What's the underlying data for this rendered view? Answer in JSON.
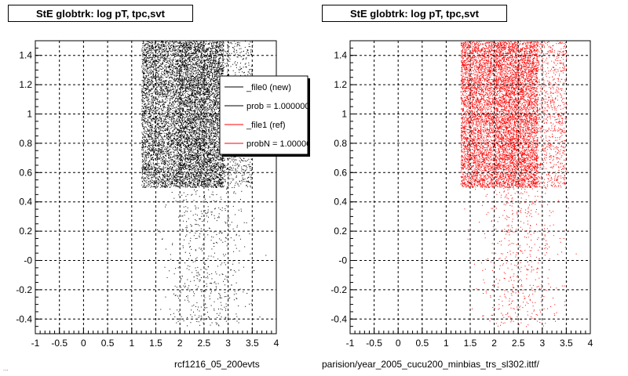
{
  "chart_data": [
    {
      "type": "scatter",
      "title": "StE globtrk: log pT, tpc,svt",
      "xlim": [
        -1,
        4
      ],
      "ylim": [
        -0.5,
        1.5
      ],
      "x_ticks": [
        "-1",
        "-0.5",
        "0",
        "0.5",
        "1",
        "1.5",
        "2",
        "2.5",
        "3",
        "3.5",
        "4"
      ],
      "y_ticks": [
        "-0.4",
        "-0.2",
        "-0",
        "0.2",
        "0.4",
        "0.6",
        "0.8",
        "1",
        "1.2",
        "1.4"
      ],
      "grid": true,
      "series": [
        {
          "name": "_file0 (new)",
          "color": "#000000",
          "regions": [
            {
              "x": [
                1.2,
                2.0
              ],
              "y": [
                0.5,
                1.5
              ],
              "density": "medium"
            },
            {
              "x": [
                2.0,
                2.9
              ],
              "y": [
                0.5,
                1.5
              ],
              "density": "high"
            },
            {
              "x": [
                2.9,
                3.5
              ],
              "y": [
                0.5,
                1.5
              ],
              "density": "low"
            },
            {
              "x": [
                1.9,
                3.2
              ],
              "y": [
                -0.45,
                0.5
              ],
              "density": "sparse"
            }
          ]
        }
      ],
      "legend": {
        "placement": "top-right",
        "entries": [
          {
            "label": "_file0 (new)",
            "color": "#000000"
          },
          {
            "label": "prob = 1.000000",
            "color": "#000000"
          },
          {
            "label": "_file1 (ref)",
            "color": "#ff0000"
          },
          {
            "label": "probN = 1.000000",
            "color": "#ff0000"
          }
        ]
      },
      "footer": "rcf1216_05_200evts"
    },
    {
      "type": "scatter",
      "title": "StE globtrk: log pT, tpc,svt",
      "xlim": [
        -1,
        4
      ],
      "ylim": [
        -0.5,
        1.5
      ],
      "x_ticks": [
        "-1",
        "-0.5",
        "0",
        "0.5",
        "1",
        "1.5",
        "2",
        "2.5",
        "3",
        "3.5",
        "4"
      ],
      "y_ticks": [
        "-0.4",
        "-0.2",
        "-0",
        "0.2",
        "0.4",
        "0.6",
        "0.8",
        "1",
        "1.2",
        "1.4"
      ],
      "grid": true,
      "series": [
        {
          "name": "_file1 (ref)",
          "color": "#ff0000",
          "regions": [
            {
              "x": [
                1.3,
                2.0
              ],
              "y": [
                0.5,
                1.5
              ],
              "density": "medium"
            },
            {
              "x": [
                2.0,
                2.9
              ],
              "y": [
                0.5,
                1.5
              ],
              "density": "high"
            },
            {
              "x": [
                2.9,
                3.5
              ],
              "y": [
                0.5,
                1.5
              ],
              "density": "low"
            },
            {
              "x": [
                1.9,
                3.2
              ],
              "y": [
                -0.45,
                0.5
              ],
              "density": "sparse"
            }
          ]
        }
      ],
      "footer": "parision/year_2005_cucu200_minbias_trs_sl302.ittf/"
    }
  ],
  "corner_text": "..."
}
